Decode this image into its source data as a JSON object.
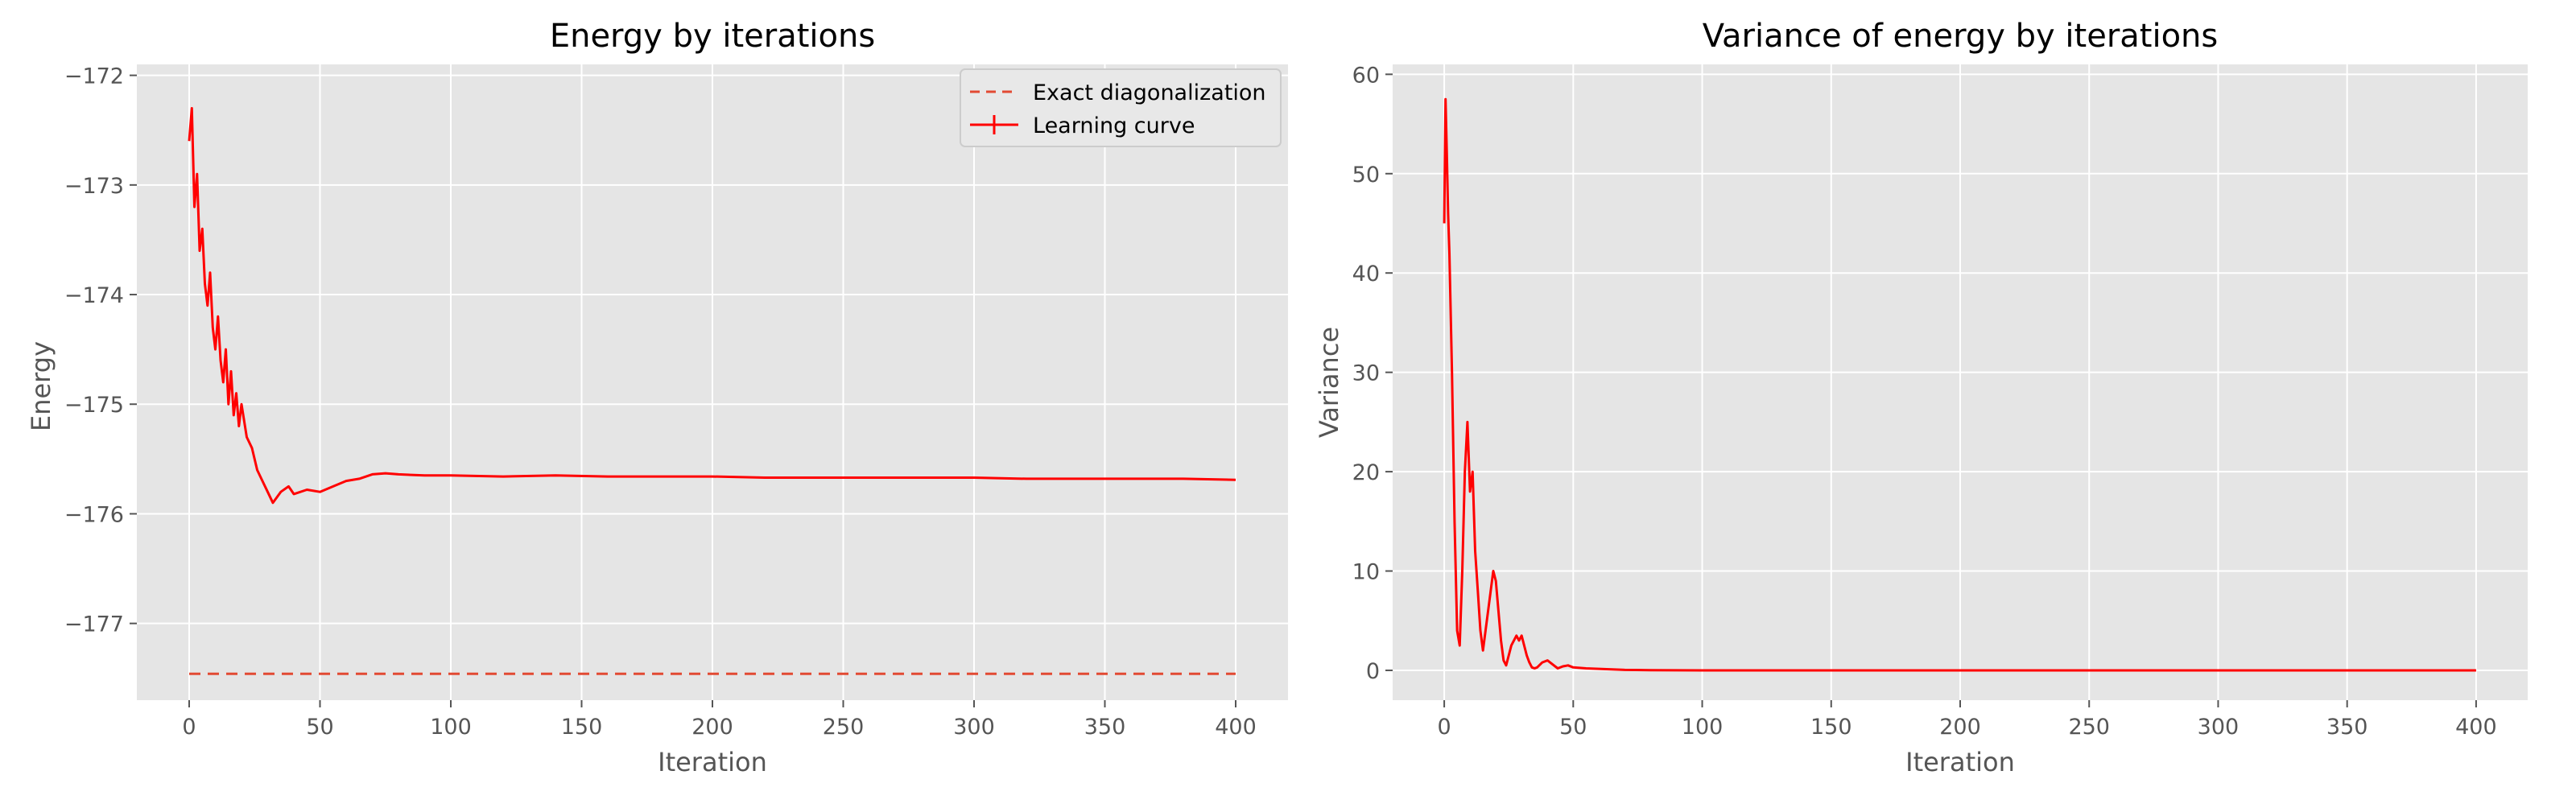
{
  "chart_data": [
    {
      "type": "line",
      "title": "Energy by iterations",
      "xlabel": "Iteration",
      "ylabel": "Energy",
      "xlim": [
        -20,
        420
      ],
      "ylim": [
        -177.7,
        -171.9
      ],
      "xticks": [
        0,
        50,
        100,
        150,
        200,
        250,
        300,
        350,
        400
      ],
      "yticks": [
        -177,
        -176,
        -175,
        -174,
        -173,
        -172
      ],
      "xtick_labels": [
        "0",
        "50",
        "100",
        "150",
        "200",
        "250",
        "300",
        "350",
        "400"
      ],
      "ytick_labels": [
        "−177",
        "−176",
        "−175",
        "−174",
        "−173",
        "−172"
      ],
      "grid": true,
      "legend": {
        "position": "top-right",
        "entries": [
          "Exact diagonalization",
          "Learning curve"
        ]
      },
      "series": [
        {
          "name": "Exact diagonalization",
          "style": "dashed",
          "color": "#e24a33",
          "x": [
            0,
            400
          ],
          "y": [
            -177.46,
            -177.46
          ]
        },
        {
          "name": "Learning curve",
          "style": "solid",
          "color": "#ff0000",
          "x": [
            0,
            1,
            2,
            3,
            4,
            5,
            6,
            7,
            8,
            9,
            10,
            11,
            12,
            13,
            14,
            15,
            16,
            17,
            18,
            19,
            20,
            22,
            24,
            26,
            28,
            30,
            32,
            35,
            38,
            40,
            45,
            50,
            55,
            60,
            65,
            70,
            75,
            80,
            90,
            100,
            120,
            140,
            160,
            180,
            200,
            220,
            240,
            260,
            280,
            300,
            320,
            340,
            360,
            380,
            400
          ],
          "y": [
            -172.6,
            -172.3,
            -173.2,
            -172.9,
            -173.6,
            -173.4,
            -173.9,
            -174.1,
            -173.8,
            -174.3,
            -174.5,
            -174.2,
            -174.6,
            -174.8,
            -174.5,
            -175.0,
            -174.7,
            -175.1,
            -174.9,
            -175.2,
            -175.0,
            -175.3,
            -175.4,
            -175.6,
            -175.7,
            -175.8,
            -175.9,
            -175.8,
            -175.75,
            -175.82,
            -175.78,
            -175.8,
            -175.75,
            -175.7,
            -175.68,
            -175.64,
            -175.63,
            -175.64,
            -175.65,
            -175.65,
            -175.66,
            -175.65,
            -175.66,
            -175.66,
            -175.66,
            -175.67,
            -175.67,
            -175.67,
            -175.67,
            -175.67,
            -175.68,
            -175.68,
            -175.68,
            -175.68,
            -175.69
          ]
        }
      ]
    },
    {
      "type": "line",
      "title": "Variance of energy by iterations",
      "xlabel": "Iteration",
      "ylabel": "Variance",
      "xlim": [
        -20,
        420
      ],
      "ylim": [
        -3.0,
        61.0
      ],
      "xticks": [
        0,
        50,
        100,
        150,
        200,
        250,
        300,
        350,
        400
      ],
      "yticks": [
        0,
        10,
        20,
        30,
        40,
        50,
        60
      ],
      "xtick_labels": [
        "0",
        "50",
        "100",
        "150",
        "200",
        "250",
        "300",
        "350",
        "400"
      ],
      "ytick_labels": [
        "0",
        "10",
        "20",
        "30",
        "40",
        "50",
        "60"
      ],
      "grid": true,
      "series": [
        {
          "style": "solid",
          "color": "#ff0000",
          "x": [
            0,
            0.5,
            1,
            1.5,
            2,
            3,
            4,
            5,
            6,
            7,
            8,
            9,
            10,
            11,
            12,
            13,
            14,
            15,
            16,
            17,
            18,
            19,
            20,
            21,
            22,
            23,
            24,
            25,
            26,
            27,
            28,
            29,
            30,
            31,
            32,
            33,
            34,
            35,
            36,
            38,
            40,
            42,
            44,
            46,
            48,
            50,
            55,
            60,
            65,
            70,
            80,
            100,
            150,
            200,
            300,
            400
          ],
          "y": [
            45,
            57.5,
            52,
            46,
            42,
            30,
            15,
            4,
            2.5,
            10,
            20,
            25,
            18,
            20,
            12,
            8,
            4,
            2,
            4,
            6,
            8,
            10,
            9,
            6,
            3,
            1,
            0.5,
            1.5,
            2.5,
            3,
            3.5,
            3,
            3.5,
            2.5,
            1.5,
            0.8,
            0.3,
            0.2,
            0.3,
            0.8,
            1.0,
            0.6,
            0.2,
            0.4,
            0.5,
            0.3,
            0.2,
            0.15,
            0.1,
            0.05,
            0.02,
            0.0,
            0.0,
            0.0,
            0.0,
            0.0
          ]
        }
      ]
    }
  ]
}
